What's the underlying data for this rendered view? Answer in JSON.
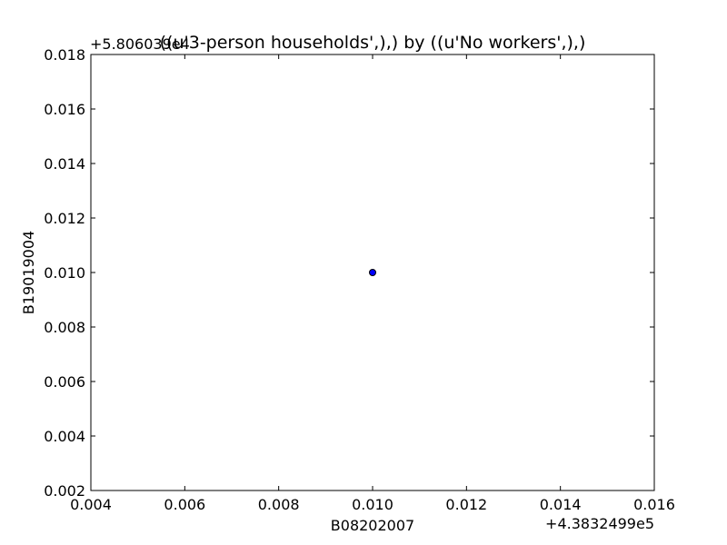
{
  "chart_data": {
    "type": "scatter",
    "title": "((u'3-person households',),) by ((u'No workers',),)",
    "xlabel": "B08202007",
    "ylabel": "B19019004",
    "x_offset_label": "+4.3832499e5",
    "y_offset_label": "+5.806039e4",
    "xlim": [
      0.004,
      0.016
    ],
    "ylim": [
      0.002,
      0.018
    ],
    "x_ticks": [
      0.004,
      0.006,
      0.008,
      0.01,
      0.012,
      0.014,
      0.016
    ],
    "y_ticks": [
      0.002,
      0.004,
      0.006,
      0.008,
      0.01,
      0.012,
      0.014,
      0.016,
      0.018
    ],
    "x_tick_labels": [
      "0.004",
      "0.006",
      "0.008",
      "0.010",
      "0.012",
      "0.014",
      "0.016"
    ],
    "y_tick_labels": [
      "0.002",
      "0.004",
      "0.006",
      "0.008",
      "0.010",
      "0.012",
      "0.014",
      "0.016",
      "0.018"
    ],
    "grid": false,
    "points": [
      {
        "x": 0.01,
        "y": 0.01
      }
    ],
    "point_color": "#0000ff"
  }
}
